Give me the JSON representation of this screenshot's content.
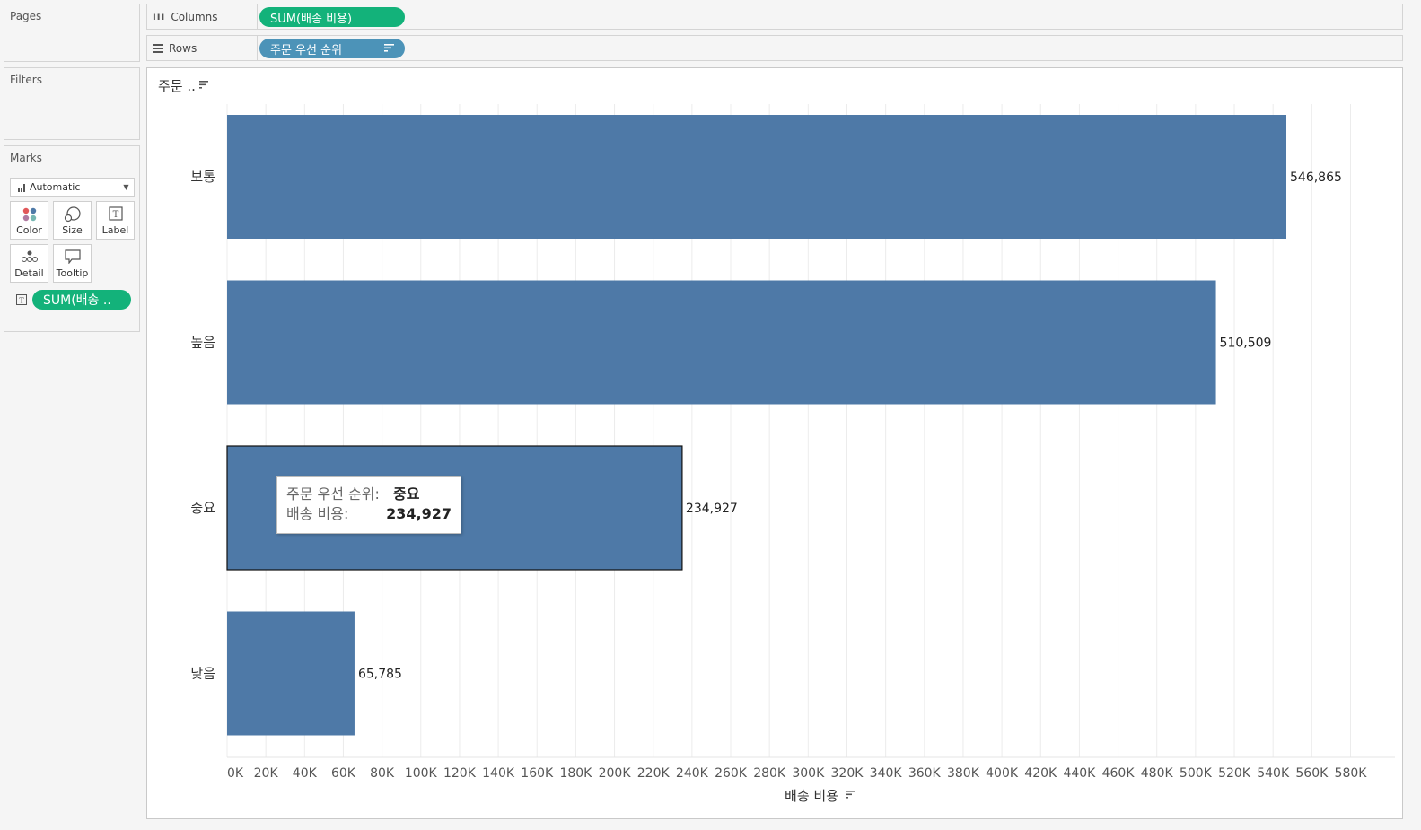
{
  "pages": {
    "title": "Pages"
  },
  "filters": {
    "title": "Filters"
  },
  "marks": {
    "title": "Marks",
    "mark_type": "Automatic",
    "buttons": {
      "color": "Color",
      "size": "Size",
      "label": "Label",
      "detail": "Detail",
      "tooltip": "Tooltip"
    },
    "label_pill": "SUM(배송 .."
  },
  "shelves": {
    "columns_label": "Columns",
    "columns_pill": "SUM(배송 비용)",
    "rows_label": "Rows",
    "rows_pill": "주문 우선 순위"
  },
  "view": {
    "row_header": "주문 ..",
    "x_title": "배송 비용"
  },
  "tooltip": {
    "label1": "주문 우선 순위:",
    "value1": "중요",
    "label2": "배송 비용:",
    "value2": "234,927"
  },
  "colors": {
    "bar": "#4e79a7",
    "pill_measure": "#13b27a",
    "pill_dimension": "#4c93b8"
  },
  "chart_data": {
    "type": "bar",
    "orientation": "horizontal",
    "categories": [
      "보통",
      "높음",
      "중요",
      "낮음"
    ],
    "values": [
      546865,
      510509,
      234927,
      65785
    ],
    "value_labels": [
      "546,865",
      "510,509",
      "234,927",
      "65,785"
    ],
    "xlabel": "배송 비용",
    "ylabel": "주문 ..",
    "xlim": [
      0,
      600000
    ],
    "x_ticks": [
      0,
      20000,
      40000,
      60000,
      80000,
      100000,
      120000,
      140000,
      160000,
      180000,
      200000,
      220000,
      240000,
      260000,
      280000,
      300000,
      320000,
      340000,
      360000,
      380000,
      400000,
      420000,
      440000,
      460000,
      480000,
      500000,
      520000,
      540000,
      560000,
      580000
    ],
    "x_tick_labels": [
      "0K",
      "20K",
      "40K",
      "60K",
      "80K",
      "100K",
      "120K",
      "140K",
      "160K",
      "180K",
      "200K",
      "220K",
      "240K",
      "260K",
      "280K",
      "300K",
      "320K",
      "340K",
      "360K",
      "380K",
      "400K",
      "420K",
      "440K",
      "460K",
      "480K",
      "500K",
      "520K",
      "540K",
      "560K",
      "580K"
    ],
    "selected_category": "중요",
    "grid": true
  }
}
